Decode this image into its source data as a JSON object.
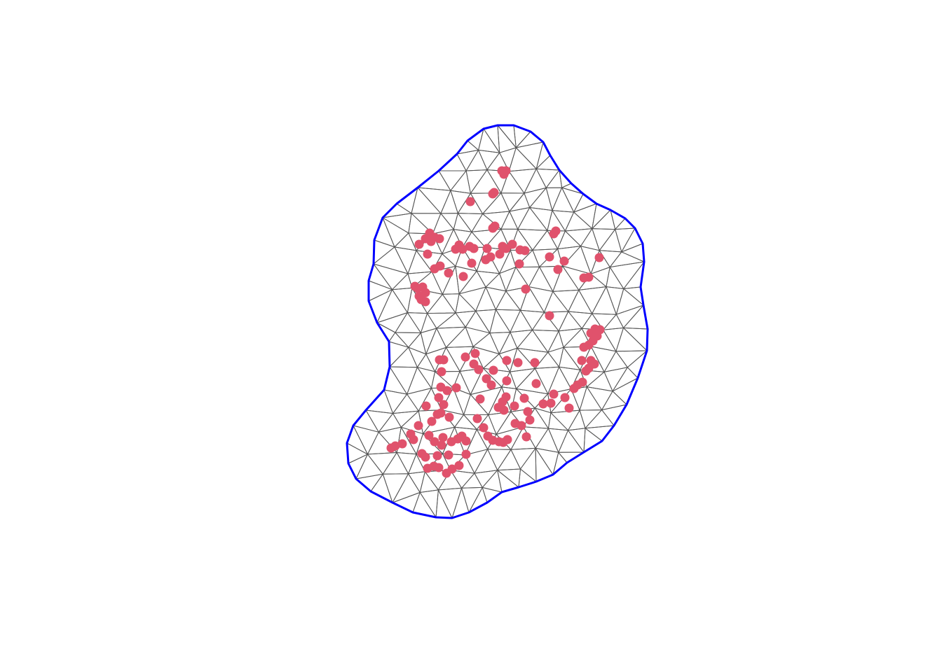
{
  "figure": {
    "type": "triangulated-mesh",
    "colors": {
      "background": "#ffffff",
      "mesh_edges": "#555555",
      "boundary": "#0000ff",
      "observation_points": "#e0526c"
    }
  }
}
